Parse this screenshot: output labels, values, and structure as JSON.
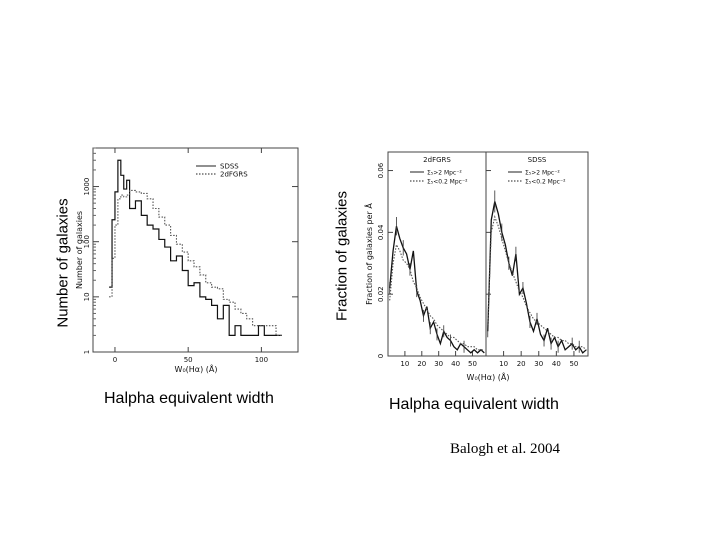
{
  "slide": {
    "left_axis_label": "Number of galaxies",
    "right_axis_label": "Fraction of galaxies",
    "left_xlabel": "Halpha equivalent width",
    "right_xlabel": "Halpha equivalent width",
    "citation": "Balogh et al. 2004"
  },
  "chart_data": [
    {
      "type": "line",
      "step": true,
      "ylabel": "Number of galaxies",
      "xlabel": "W₀(Hα) (Å)",
      "xlim": [
        -15,
        125
      ],
      "xticks": [
        0,
        50,
        100
      ],
      "xtick_labels": [
        "0",
        "50",
        "100"
      ],
      "ylim": [
        1,
        5000
      ],
      "yscale": "log",
      "yticks": [
        1,
        10,
        100,
        1000
      ],
      "ytick_labels": [
        "1",
        "10",
        "100",
        "1000"
      ],
      "legend": {
        "placement": "top-right",
        "entries": [
          "SDSS",
          "2dFGRS"
        ]
      },
      "series": [
        {
          "name": "SDSS",
          "style": "solid",
          "x": [
            -4,
            -2,
            0,
            2,
            4,
            6,
            8,
            10,
            14,
            18,
            22,
            26,
            30,
            34,
            38,
            42,
            46,
            50,
            54,
            58,
            62,
            66,
            70,
            74,
            78,
            82,
            86,
            90,
            94,
            98,
            102,
            106,
            110
          ],
          "y": [
            15,
            250,
            800,
            3000,
            1600,
            900,
            1300,
            400,
            550,
            300,
            200,
            170,
            110,
            80,
            45,
            55,
            30,
            16,
            18,
            10,
            9,
            7,
            4,
            7,
            2,
            3,
            2,
            2,
            2,
            3,
            2,
            2,
            2
          ]
        },
        {
          "name": "2dFGRS",
          "style": "dotted",
          "x": [
            -4,
            -2,
            0,
            2,
            4,
            6,
            8,
            10,
            14,
            18,
            22,
            26,
            30,
            34,
            38,
            42,
            46,
            50,
            54,
            58,
            62,
            66,
            70,
            74,
            78,
            82,
            86,
            90,
            94,
            98,
            102,
            106,
            110
          ],
          "y": [
            10,
            50,
            200,
            600,
            700,
            650,
            700,
            850,
            800,
            750,
            600,
            400,
            280,
            200,
            130,
            90,
            65,
            45,
            35,
            25,
            18,
            15,
            14,
            9,
            8,
            6,
            5,
            4,
            3,
            3,
            3,
            3,
            2
          ]
        }
      ]
    },
    {
      "type": "line",
      "ylabel": "Fraction of galaxies per Å",
      "xlabel": "W₀(Hα) (Å)",
      "panels": [
        {
          "title": "2dFGRS",
          "xlim": [
            0,
            58
          ],
          "xticks": [
            10,
            20,
            30,
            40,
            50
          ],
          "ylim": [
            0,
            0.066
          ],
          "yticks": [
            0,
            0.02,
            0.04,
            0.06
          ],
          "ytick_labels": [
            "0",
            "0.02",
            "0.04",
            "0.06"
          ],
          "legend": {
            "placement": "top-right",
            "entries": [
              "Σ₅>2 Mpc⁻²",
              "Σ₅<0.2 Mpc⁻²"
            ]
          },
          "series": [
            {
              "name": "Σ₅>2 Mpc⁻²",
              "style": "solid",
              "x": [
                1,
                3,
                5,
                7,
                9,
                11,
                13,
                15,
                17,
                19,
                21,
                23,
                25,
                27,
                29,
                31,
                33,
                35,
                37,
                39,
                41,
                43,
                45,
                47,
                49,
                51,
                53,
                55,
                57
              ],
              "y": [
                0.022,
                0.034,
                0.042,
                0.038,
                0.035,
                0.033,
                0.028,
                0.034,
                0.021,
                0.018,
                0.013,
                0.016,
                0.009,
                0.011,
                0.007,
                0.004,
                0.008,
                0.006,
                0.005,
                0.003,
                0.002,
                0.004,
                0.003,
                0.002,
                0.001,
                0.002,
                0.001,
                0.002,
                0.001
              ]
            },
            {
              "name": "Σ₅<0.2 Mpc⁻²",
              "style": "dotted",
              "x": [
                1,
                3,
                5,
                7,
                9,
                11,
                13,
                15,
                17,
                19,
                21,
                23,
                25,
                27,
                29,
                31,
                33,
                35,
                37,
                39,
                41,
                43,
                45,
                47,
                49,
                51,
                53,
                55,
                57
              ],
              "y": [
                0.018,
                0.03,
                0.036,
                0.034,
                0.031,
                0.03,
                0.028,
                0.024,
                0.022,
                0.019,
                0.017,
                0.015,
                0.013,
                0.012,
                0.01,
                0.009,
                0.008,
                0.007,
                0.006,
                0.006,
                0.005,
                0.004,
                0.004,
                0.003,
                0.003,
                0.003,
                0.002,
                0.002,
                0.002
              ]
            }
          ]
        },
        {
          "title": "SDSS",
          "xlim": [
            0,
            58
          ],
          "xticks": [
            10,
            20,
            30,
            40,
            50
          ],
          "ylim": [
            0,
            0.066
          ],
          "yticks": [
            0,
            0.02,
            0.04,
            0.06
          ],
          "ytick_labels": [
            "0",
            "0.02",
            "0.04",
            "0.06"
          ],
          "legend": {
            "placement": "top-right",
            "entries": [
              "Σ₅>2 Mpc⁻²",
              "Σ₅<0.2 Mpc⁻²"
            ]
          },
          "series": [
            {
              "name": "Σ₅>2 Mpc⁻²",
              "style": "solid",
              "x": [
                1,
                3,
                5,
                7,
                9,
                11,
                13,
                15,
                17,
                19,
                21,
                23,
                25,
                27,
                29,
                31,
                33,
                35,
                37,
                39,
                41,
                43,
                45,
                47,
                49,
                51,
                53,
                55,
                57
              ],
              "y": [
                0.008,
                0.044,
                0.05,
                0.046,
                0.04,
                0.036,
                0.03,
                0.026,
                0.033,
                0.02,
                0.022,
                0.017,
                0.011,
                0.008,
                0.012,
                0.007,
                0.005,
                0.009,
                0.004,
                0.006,
                0.003,
                0.005,
                0.002,
                0.003,
                0.004,
                0.002,
                0.003,
                0.001,
                0.002
              ]
            },
            {
              "name": "Σ₅<0.2 Mpc⁻²",
              "style": "dotted",
              "x": [
                1,
                3,
                5,
                7,
                9,
                11,
                13,
                15,
                17,
                19,
                21,
                23,
                25,
                27,
                29,
                31,
                33,
                35,
                37,
                39,
                41,
                43,
                45,
                47,
                49,
                51,
                53,
                55,
                57
              ],
              "y": [
                0.01,
                0.04,
                0.045,
                0.042,
                0.038,
                0.034,
                0.03,
                0.027,
                0.024,
                0.021,
                0.019,
                0.016,
                0.014,
                0.012,
                0.011,
                0.01,
                0.009,
                0.008,
                0.007,
                0.006,
                0.006,
                0.005,
                0.005,
                0.004,
                0.004,
                0.003,
                0.003,
                0.003,
                0.002
              ]
            }
          ]
        }
      ]
    }
  ]
}
